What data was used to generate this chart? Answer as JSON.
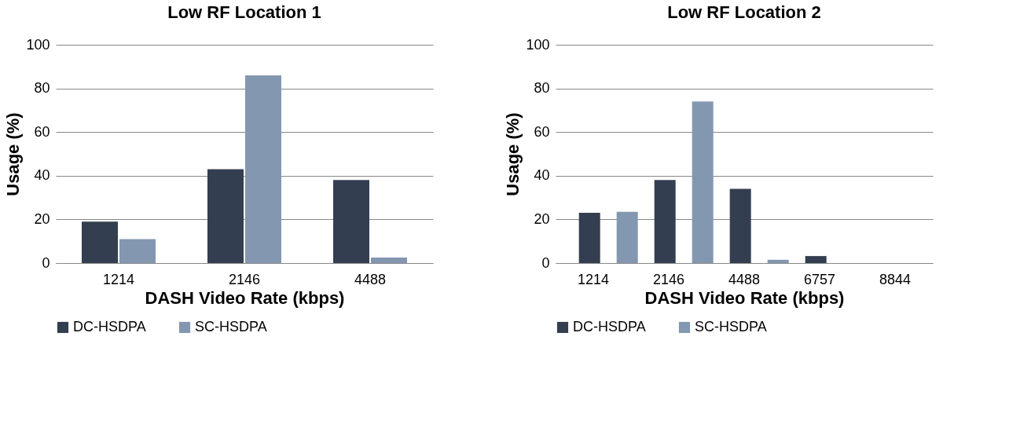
{
  "chart_data": [
    {
      "type": "bar",
      "title": "Low RF Location 1",
      "xlabel": "DASH Video Rate (kbps)",
      "ylabel": "Usage (%)",
      "categories": [
        "1214",
        "2146",
        "4488"
      ],
      "series": [
        {
          "name": "DC-HSDPA",
          "color": "#333f50",
          "values": [
            19,
            43,
            38
          ]
        },
        {
          "name": "SC-HSDPA",
          "color": "#8497b0",
          "values": [
            11,
            86,
            2.5
          ]
        }
      ],
      "ylim": [
        0,
        100
      ],
      "yticks": [
        0,
        20,
        40,
        60,
        80,
        100
      ],
      "grid": "y",
      "legend": "bottom"
    },
    {
      "type": "bar",
      "title": "Low RF Location 2",
      "xlabel": "DASH Video Rate (kbps)",
      "ylabel": "Usage (%)",
      "categories": [
        "1214",
        "2146",
        "4488",
        "6757",
        "8844"
      ],
      "series": [
        {
          "name": "DC-HSDPA",
          "color": "#333f50",
          "values": [
            23,
            38,
            34,
            3.2,
            0
          ]
        },
        {
          "name": "SC-HSDPA",
          "color": "#8497b0",
          "values": [
            23.5,
            74,
            1.5,
            0,
            0
          ]
        }
      ],
      "ylim": [
        0,
        100
      ],
      "yticks": [
        0,
        20,
        40,
        60,
        80,
        100
      ],
      "grid": "y",
      "legend": "bottom"
    }
  ]
}
